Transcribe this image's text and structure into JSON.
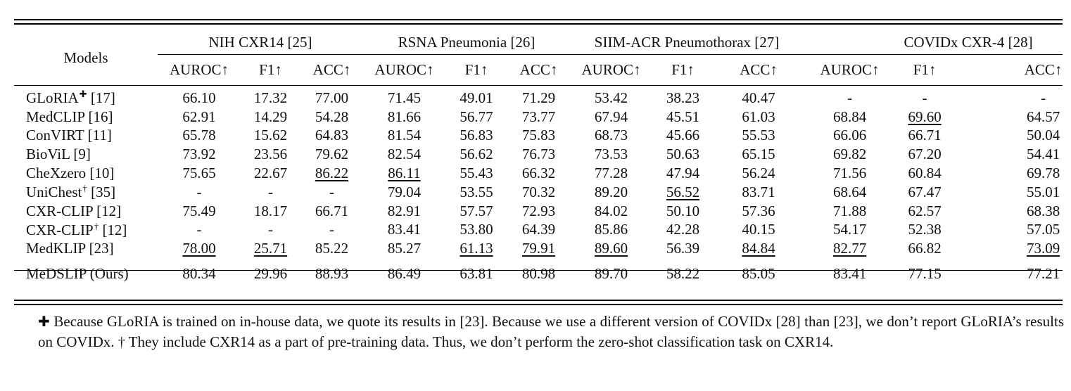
{
  "table": {
    "models_header": "Models",
    "datasets": [
      {
        "name": "NIH CXR14 [25]"
      },
      {
        "name": "RSNA Pneumonia [26]"
      },
      {
        "name": "SIIM-ACR Pneumothorax [27]"
      },
      {
        "name": "COVIDx CXR-4 [28]"
      }
    ],
    "metrics": [
      "AUROC↑",
      "F1↑",
      "ACC↑",
      "AUROC↑",
      "F1↑",
      "ACC↑",
      "AUROC↑",
      "F1↑",
      "ACC↑",
      "AUROC↑",
      "F1↑",
      "ACC↑"
    ],
    "rows": [
      {
        "name": "GLoRIA",
        "mark": "✚",
        "ref": "[17]",
        "cells": [
          "66.10",
          "17.32",
          "77.00",
          "71.45",
          "49.01",
          "71.29",
          "53.42",
          "38.23",
          "40.47",
          "-",
          "-",
          "-"
        ],
        "underline": []
      },
      {
        "name": "MedCLIP",
        "mark": "",
        "ref": "[16]",
        "cells": [
          "62.91",
          "14.29",
          "54.28",
          "81.66",
          "56.77",
          "73.77",
          "67.94",
          "45.51",
          "61.03",
          "68.84",
          "69.60",
          "64.57"
        ],
        "underline": [
          10
        ]
      },
      {
        "name": "ConVIRT",
        "mark": "",
        "ref": "[11]",
        "cells": [
          "65.78",
          "15.62",
          "64.83",
          "81.54",
          "56.83",
          "75.83",
          "68.73",
          "45.66",
          "55.53",
          "66.06",
          "66.71",
          "50.04"
        ],
        "underline": []
      },
      {
        "name": "BioViL",
        "mark": "",
        "ref": "[9]",
        "cells": [
          "73.92",
          "23.56",
          "79.62",
          "82.54",
          "56.62",
          "76.73",
          "73.53",
          "50.63",
          "65.15",
          "69.82",
          "67.20",
          "54.41"
        ],
        "underline": []
      },
      {
        "name": "CheXzero",
        "mark": "",
        "ref": "[10]",
        "cells": [
          "75.65",
          "22.67",
          "86.22",
          "86.11",
          "55.43",
          "66.32",
          "77.28",
          "47.94",
          "56.24",
          "71.56",
          "60.84",
          "69.78"
        ],
        "underline": [
          2,
          3
        ]
      },
      {
        "name": "UniChest",
        "mark": "†",
        "ref": "[35]",
        "cells": [
          "-",
          "-",
          "-",
          "79.04",
          "53.55",
          "70.32",
          "89.20",
          "56.52",
          "83.71",
          "68.64",
          "67.47",
          "55.01"
        ],
        "underline": [
          7
        ]
      },
      {
        "name": "CXR-CLIP",
        "mark": "",
        "ref": "[12]",
        "cells": [
          "75.49",
          "18.17",
          "66.71",
          "82.91",
          "57.57",
          "72.93",
          "84.02",
          "50.10",
          "57.36",
          "71.88",
          "62.57",
          "68.38"
        ],
        "underline": []
      },
      {
        "name": "CXR-CLIP",
        "mark": "†",
        "ref": "[12]",
        "cells": [
          "-",
          "-",
          "-",
          "83.41",
          "53.80",
          "64.39",
          "85.86",
          "42.28",
          "40.15",
          "54.17",
          "52.38",
          "57.05"
        ],
        "underline": []
      },
      {
        "name": "MedKLIP",
        "mark": "",
        "ref": "[23]",
        "cells": [
          "78.00",
          "25.71",
          "85.22",
          "85.27",
          "61.13",
          "79.91",
          "89.60",
          "56.39",
          "84.84",
          "82.77",
          "66.82",
          "73.09"
        ],
        "underline": [
          0,
          1,
          4,
          5,
          6,
          8,
          9,
          11
        ]
      }
    ],
    "ours": {
      "label": "MeDSLIP (Ours)",
      "cells": [
        "80.34",
        "29.96",
        "88.93",
        "86.49",
        "63.81",
        "80.98",
        "89.70",
        "58.22",
        "85.05",
        "83.41",
        "77.15",
        "77.21"
      ]
    }
  },
  "footnote": {
    "mark1": "✚",
    "text1": " Because GLoRIA is trained on in-house data, we quote its results in [23]. Because we use a different version of COVIDx [28] than [23], we don’t report GLoRIA’s results on COVIDx. ",
    "mark2": "†",
    "text2": " They include CXR14 as a part of pre-training data. Thus, we don’t perform the zero-shot classification task on CXR14."
  }
}
